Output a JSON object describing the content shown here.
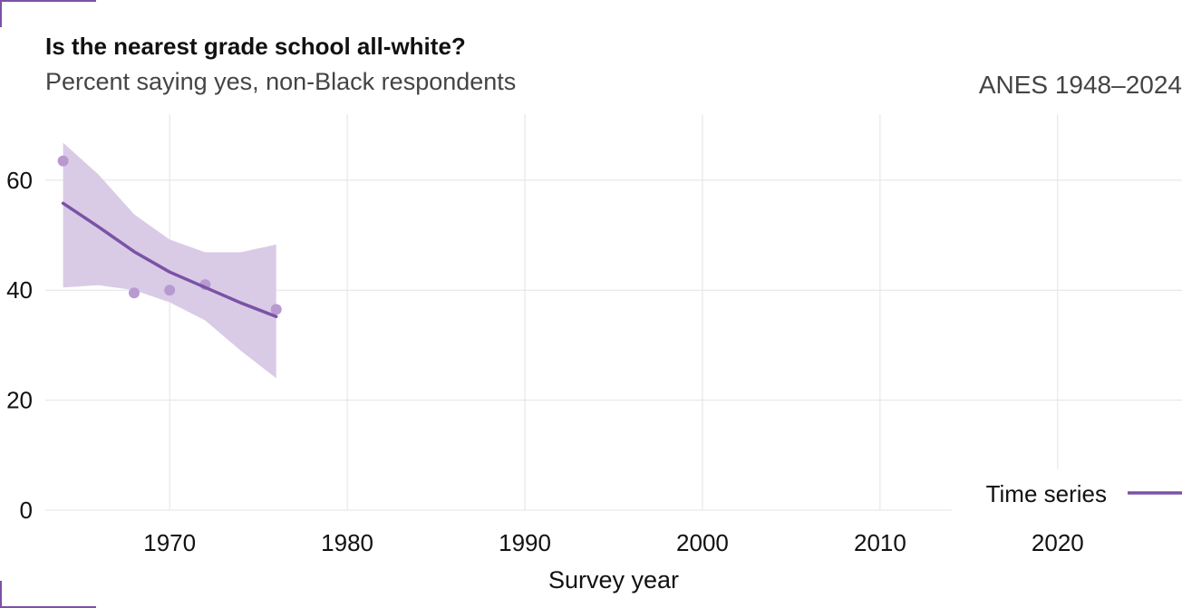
{
  "header": {
    "title": "Is the nearest grade school all-white?",
    "subtitle": "Percent saying yes, non-Black respondents",
    "source": "ANES 1948–2024"
  },
  "colors": {
    "series": "#7b52a6",
    "band": "#d9cbe6",
    "point": "#b89ad1",
    "grid": "#e3e3e3"
  },
  "chart_data": {
    "type": "line",
    "title": "Is the nearest grade school all-white?",
    "subtitle": "Percent saying yes, non-Black respondents",
    "xlabel": "Survey year",
    "ylabel": "",
    "xlim": [
      1963,
      2027
    ],
    "ylim": [
      0,
      72
    ],
    "x_ticks": [
      1970,
      1980,
      1990,
      2000,
      2010,
      2020
    ],
    "y_ticks": [
      0,
      20,
      40,
      60
    ],
    "grid": true,
    "legend": {
      "position": "bottom-right",
      "entries": [
        "Time series"
      ]
    },
    "points": [
      {
        "x": 1964,
        "y": 63.5
      },
      {
        "x": 1968,
        "y": 39.5
      },
      {
        "x": 1970,
        "y": 40.0
      },
      {
        "x": 1972,
        "y": 41.0
      },
      {
        "x": 1976,
        "y": 36.5
      }
    ],
    "series": [
      {
        "name": "Time series",
        "x": [
          1964,
          1966,
          1968,
          1970,
          1972,
          1974,
          1976
        ],
        "y": [
          55.8,
          51.5,
          47.0,
          43.3,
          40.5,
          37.7,
          35.2
        ],
        "lower": [
          40.5,
          40.9,
          40.0,
          37.8,
          34.5,
          29.0,
          24.0
        ],
        "upper": [
          66.8,
          61.0,
          53.8,
          49.2,
          46.9,
          46.9,
          48.3
        ]
      }
    ]
  }
}
